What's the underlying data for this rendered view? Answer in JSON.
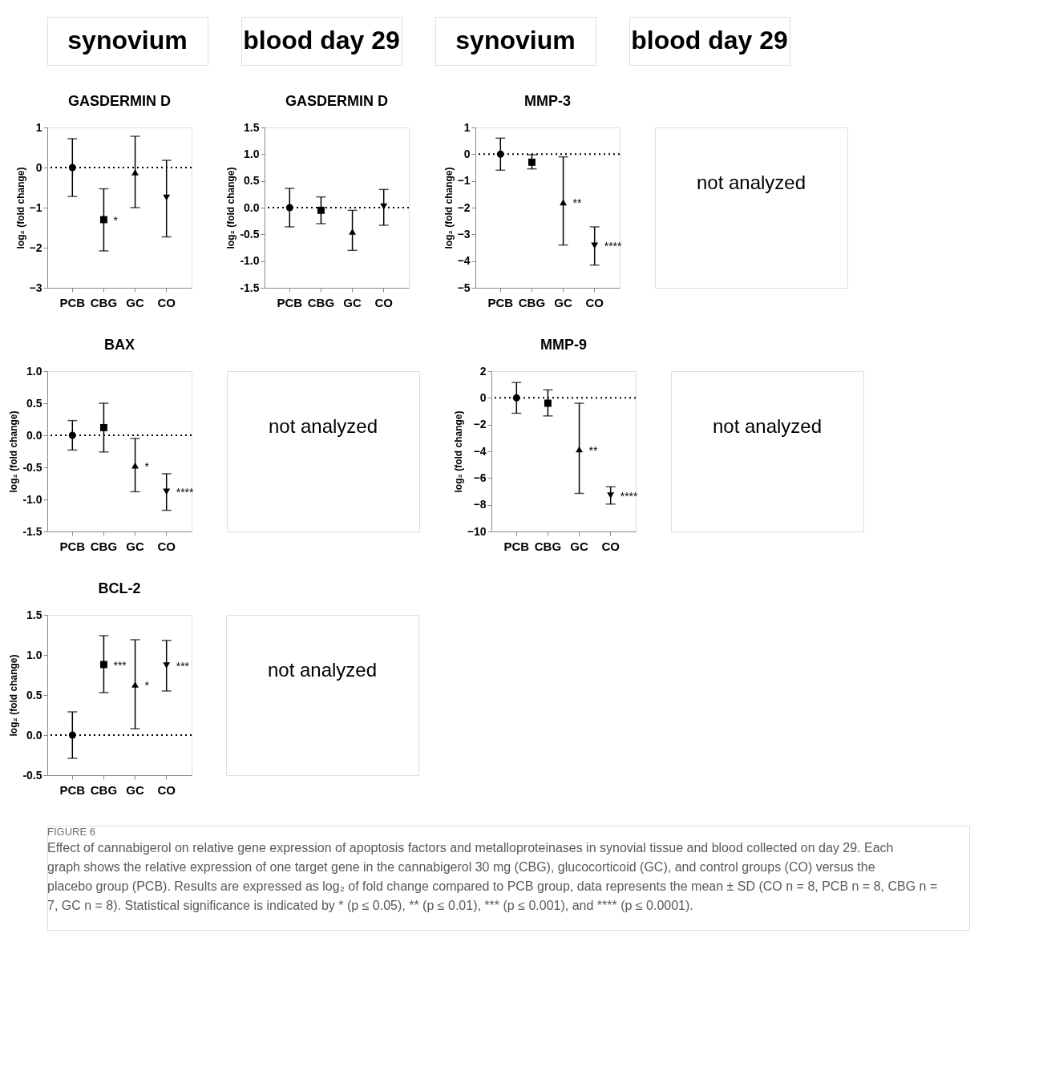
{
  "chart_data": [
    {
      "type": "other",
      "title": "synovium"
    },
    {
      "type": "other",
      "title": "blood day 29"
    },
    {
      "type": "other",
      "title": "synovium"
    },
    {
      "type": "other",
      "title": "blood day 29"
    },
    {
      "type": "scatter",
      "title": "GASDERMIN D",
      "ylabel": "log₂ (fold change)",
      "categories": [
        "PCB",
        "CBG",
        "GC",
        "CO"
      ],
      "ylim": [
        -3,
        1
      ],
      "yticks": [
        -3,
        -2,
        -1,
        0,
        1
      ],
      "series": [
        {
          "x": [
            "PCB"
          ],
          "values": [
            0
          ],
          "errors": [
            [
              -0.72,
              0.72
            ]
          ],
          "marker": "circle",
          "color": "#000000"
        },
        {
          "x": [
            "CBG"
          ],
          "values": [
            -1.3
          ],
          "errors": [
            [
              -2.08,
              -0.53
            ]
          ],
          "marker": "square",
          "color": "#000000"
        },
        {
          "x": [
            "GC"
          ],
          "values": [
            -0.12
          ],
          "errors": [
            [
              -1.0,
              0.78
            ]
          ],
          "marker": "triangle",
          "color": "#000000"
        },
        {
          "x": [
            "CO"
          ],
          "values": [
            -0.75
          ],
          "errors": [
            [
              -1.73,
              0.18
            ]
          ],
          "marker": "triangle_down",
          "color": "#000000"
        }
      ],
      "ref_lines": [
        {
          "axis": "y",
          "value": 0,
          "line_style": "dotted"
        }
      ],
      "annotations": [
        {
          "text": "*",
          "x": "CBG",
          "y": -1.3
        }
      ]
    },
    {
      "type": "scatter",
      "title": "GASDERMIN D",
      "ylabel": "log₂ (fold change)",
      "categories": [
        "PCB",
        "CBG",
        "GC",
        "CO"
      ],
      "ylim": [
        -1.5,
        1.5
      ],
      "yticks": [
        {
          "value": -1.5,
          "label": "-1.5"
        },
        {
          "value": -1,
          "label": "-1.0"
        },
        {
          "value": -0.5,
          "label": "-0.5"
        },
        {
          "value": 0,
          "label": "0.0"
        },
        {
          "value": 0.5,
          "label": "0.5"
        },
        {
          "value": 1,
          "label": "1.0"
        },
        {
          "value": 1.5,
          "label": "1.5"
        }
      ],
      "series": [
        {
          "x": [
            "PCB"
          ],
          "values": [
            0
          ],
          "errors": [
            [
              -0.36,
              0.36
            ]
          ],
          "marker": "circle",
          "color": "#000000"
        },
        {
          "x": [
            "CBG"
          ],
          "values": [
            -0.05
          ],
          "errors": [
            [
              -0.3,
              0.2
            ]
          ],
          "marker": "square",
          "color": "#000000"
        },
        {
          "x": [
            "GC"
          ],
          "values": [
            -0.45
          ],
          "errors": [
            [
              -0.8,
              -0.05
            ]
          ],
          "marker": "triangle",
          "color": "#000000"
        },
        {
          "x": [
            "CO"
          ],
          "values": [
            0.02
          ],
          "errors": [
            [
              -0.33,
              0.34
            ]
          ],
          "marker": "triangle_down",
          "color": "#000000"
        }
      ],
      "ref_lines": [
        {
          "axis": "y",
          "value": 0,
          "line_style": "dotted"
        }
      ]
    },
    {
      "type": "scatter",
      "title": "MMP-3",
      "ylabel": "log₂ (fold change)",
      "categories": [
        "PCB",
        "CBG",
        "GC",
        "CO"
      ],
      "ylim": [
        -5,
        1
      ],
      "yticks": [
        -5,
        -4,
        -3,
        -2,
        -1,
        0,
        1
      ],
      "series": [
        {
          "x": [
            "PCB"
          ],
          "values": [
            0
          ],
          "errors": [
            [
              -0.6,
              0.6
            ]
          ],
          "marker": "circle",
          "color": "#000000"
        },
        {
          "x": [
            "CBG"
          ],
          "values": [
            -0.3
          ],
          "errors": [
            [
              -0.55,
              -0.02
            ]
          ],
          "marker": "square",
          "color": "#000000"
        },
        {
          "x": [
            "GC"
          ],
          "values": [
            -1.8
          ],
          "errors": [
            [
              -3.4,
              -0.1
            ]
          ],
          "marker": "triangle",
          "color": "#000000"
        },
        {
          "x": [
            "CO"
          ],
          "values": [
            -3.42
          ],
          "errors": [
            [
              -4.15,
              -2.72
            ]
          ],
          "marker": "triangle_down",
          "color": "#000000"
        }
      ],
      "ref_lines": [
        {
          "axis": "y",
          "value": 0,
          "line_style": "dotted"
        }
      ],
      "annotations": [
        {
          "text": "**",
          "x": "GC",
          "y": -1.8
        },
        {
          "text": "****",
          "x": "CO",
          "y": -3.42
        }
      ]
    },
    {
      "type": "other",
      "annotations": [
        "not analyzed"
      ]
    },
    {
      "type": "scatter",
      "title": "BAX",
      "ylabel": "log₂ (fold change)",
      "categories": [
        "PCB",
        "CBG",
        "GC",
        "CO"
      ],
      "ylim": [
        -1.5,
        1
      ],
      "yticks": [
        {
          "value": -1.5,
          "label": "-1.5"
        },
        {
          "value": -1,
          "label": "-1.0"
        },
        {
          "value": -0.5,
          "label": "-0.5"
        },
        {
          "value": 0,
          "label": "0.0"
        },
        {
          "value": 0.5,
          "label": "0.5"
        },
        {
          "value": 1,
          "label": "1.0"
        }
      ],
      "series": [
        {
          "x": [
            "PCB"
          ],
          "values": [
            0
          ],
          "errors": [
            [
              -0.23,
              0.23
            ]
          ],
          "marker": "circle",
          "color": "#000000"
        },
        {
          "x": [
            "CBG"
          ],
          "values": [
            0.12
          ],
          "errors": [
            [
              -0.26,
              0.5
            ]
          ],
          "marker": "square",
          "color": "#000000"
        },
        {
          "x": [
            "GC"
          ],
          "values": [
            -0.47
          ],
          "errors": [
            [
              -0.88,
              -0.05
            ]
          ],
          "marker": "triangle",
          "color": "#000000"
        },
        {
          "x": [
            "CO"
          ],
          "values": [
            -0.88
          ],
          "errors": [
            [
              -1.17,
              -0.6
            ]
          ],
          "marker": "triangle_down",
          "color": "#000000"
        }
      ],
      "ref_lines": [
        {
          "axis": "y",
          "value": 0,
          "line_style": "dotted"
        }
      ],
      "annotations": [
        {
          "text": "*",
          "x": "GC",
          "y": -0.47
        },
        {
          "text": "****",
          "x": "CO",
          "y": -0.88
        }
      ]
    },
    {
      "type": "other",
      "annotations": [
        "not analyzed"
      ]
    },
    {
      "type": "scatter",
      "title": "MMP-9",
      "ylabel": "log₂ (fold change)",
      "categories": [
        "PCB",
        "CBG",
        "GC",
        "CO"
      ],
      "ylim": [
        -10,
        2
      ],
      "yticks": [
        -10,
        -8,
        -6,
        -4,
        -2,
        0,
        2
      ],
      "series": [
        {
          "x": [
            "PCB"
          ],
          "values": [
            0
          ],
          "errors": [
            [
              -1.15,
              1.15
            ]
          ],
          "marker": "circle",
          "color": "#000000"
        },
        {
          "x": [
            "CBG"
          ],
          "values": [
            -0.4
          ],
          "errors": [
            [
              -1.35,
              0.6
            ]
          ],
          "marker": "square",
          "color": "#000000"
        },
        {
          "x": [
            "GC"
          ],
          "values": [
            -3.85
          ],
          "errors": [
            [
              -7.15,
              -0.4
            ]
          ],
          "marker": "triangle",
          "color": "#000000"
        },
        {
          "x": [
            "CO"
          ],
          "values": [
            -7.3
          ],
          "errors": [
            [
              -7.95,
              -6.65
            ]
          ],
          "marker": "triangle_down",
          "color": "#000000"
        }
      ],
      "ref_lines": [
        {
          "axis": "y",
          "value": 0,
          "line_style": "dotted"
        }
      ],
      "annotations": [
        {
          "text": "**",
          "x": "GC",
          "y": -3.85
        },
        {
          "text": "****",
          "x": "CO",
          "y": -7.3
        }
      ]
    },
    {
      "type": "other",
      "annotations": [
        "not analyzed"
      ]
    },
    {
      "type": "scatter",
      "title": "BCL-2",
      "ylabel": "log₂ (fold change)",
      "categories": [
        "PCB",
        "CBG",
        "GC",
        "CO"
      ],
      "ylim": [
        -0.5,
        1.5
      ],
      "yticks": [
        {
          "value": -0.5,
          "label": "-0.5"
        },
        {
          "value": 0,
          "label": "0.0"
        },
        {
          "value": 0.5,
          "label": "0.5"
        },
        {
          "value": 1,
          "label": "1.0"
        },
        {
          "value": 1.5,
          "label": "1.5"
        }
      ],
      "series": [
        {
          "x": [
            "PCB"
          ],
          "values": [
            0
          ],
          "errors": [
            [
              -0.29,
              0.29
            ]
          ],
          "marker": "circle",
          "color": "#000000"
        },
        {
          "x": [
            "CBG"
          ],
          "values": [
            0.88
          ],
          "errors": [
            [
              0.53,
              1.24
            ]
          ],
          "marker": "square",
          "color": "#000000"
        },
        {
          "x": [
            "GC"
          ],
          "values": [
            0.63
          ],
          "errors": [
            [
              0.08,
              1.19
            ]
          ],
          "marker": "triangle",
          "color": "#000000"
        },
        {
          "x": [
            "CO"
          ],
          "values": [
            0.87
          ],
          "errors": [
            [
              0.55,
              1.18
            ]
          ],
          "marker": "triangle_down",
          "color": "#000000"
        }
      ],
      "ref_lines": [
        {
          "axis": "y",
          "value": 0,
          "line_style": "dotted"
        }
      ],
      "annotations": [
        {
          "text": "***",
          "x": "CBG",
          "y": 0.88
        },
        {
          "text": "*",
          "x": "GC",
          "y": 0.63
        },
        {
          "text": "***",
          "x": "CO",
          "y": 0.87
        }
      ]
    },
    {
      "type": "other",
      "annotations": [
        "not analyzed"
      ]
    },
    {
      "type": "other",
      "annotations": [
        "FIGURE 6",
        "Effect of cannabigerol on relative gene expression of apoptosis factors and metalloproteinases in synovial tissue and blood collected on day 29. Each graph shows the relative expression of one target gene in the cannabigerol 30 mg (CBG), glucocorticoid (GC), and control groups (CO) versus the placebo group (PCB). Results are expressed as log₂ of fold change compared to PCB group, data represents the mean ± SD (CO n = 8, PCB n = 8, CBG n = 7, GC n = 8). Statistical significance is indicated by * (p ≤ 0.05), ** (p ≤ 0.01), *** (p ≤ 0.001), and **** (p ≤ 0.0001)."
      ]
    }
  ]
}
